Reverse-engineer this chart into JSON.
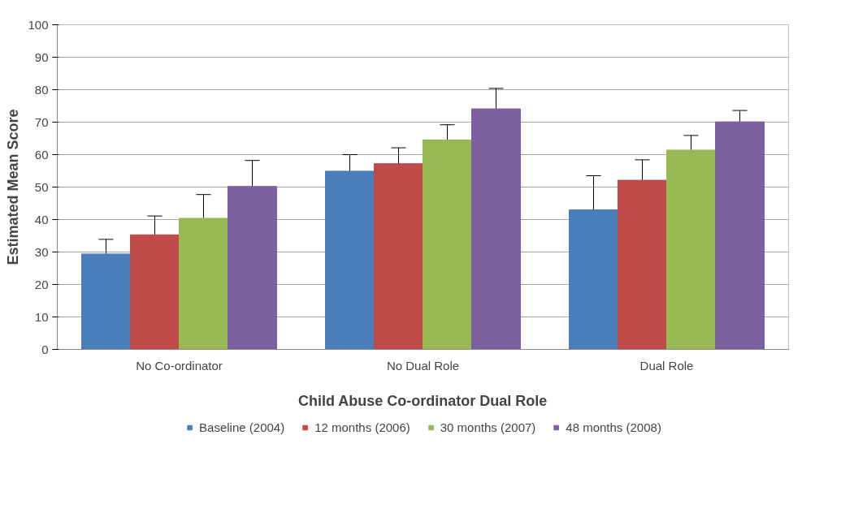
{
  "chart_data": {
    "type": "bar",
    "xlabel": "Child Abuse Co-ordinator Dual Role",
    "ylabel": "Estimated Mean Score",
    "categories": [
      "No Co-ordinator",
      "No Dual Role",
      "Dual Role"
    ],
    "series": [
      {
        "name": "Baseline (2004)",
        "color": "#4a7ebb",
        "values": [
          29.4,
          54.9,
          43
        ],
        "errors": [
          4.5,
          5.1,
          10.5
        ]
      },
      {
        "name": "12 months (2006)",
        "color": "#be4b48",
        "values": [
          35.3,
          57.2,
          52.1
        ],
        "errors": [
          5.8,
          4.9,
          6.3
        ]
      },
      {
        "name": "30 months (2007)",
        "color": "#98b954",
        "values": [
          40.4,
          64.5,
          61.4
        ],
        "errors": [
          7.3,
          4.7,
          4.5
        ]
      },
      {
        "name": "48 months (2008)",
        "color": "#7d60a0",
        "values": [
          50.2,
          74.1,
          70.1
        ],
        "errors": [
          8,
          6.3,
          3.5
        ]
      }
    ],
    "ylim": [
      0,
      100
    ],
    "yticks": [
      0,
      10,
      20,
      30,
      40,
      50,
      60,
      70,
      80,
      90,
      100
    ],
    "grid": "y",
    "legend": "bottom"
  }
}
